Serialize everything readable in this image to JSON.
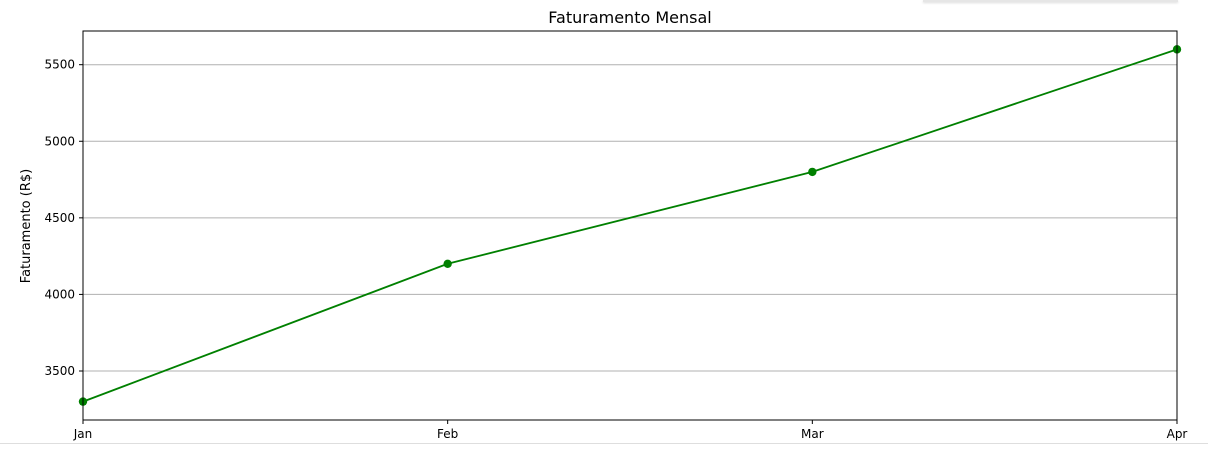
{
  "chart_data": {
    "type": "line",
    "title": "Faturamento Mensal",
    "xlabel": "",
    "ylabel": "Faturamento (R$)",
    "categories": [
      "Jan",
      "Feb",
      "Mar",
      "Apr"
    ],
    "series": [
      {
        "values": [
          3300,
          4200,
          4800,
          5600
        ],
        "color": "#008000",
        "marker": "circle"
      }
    ],
    "ylim": [
      3180,
      5720
    ],
    "yticks": [
      3500,
      4000,
      4500,
      5000,
      5500
    ],
    "grid": "y-axis",
    "legend": "none"
  }
}
